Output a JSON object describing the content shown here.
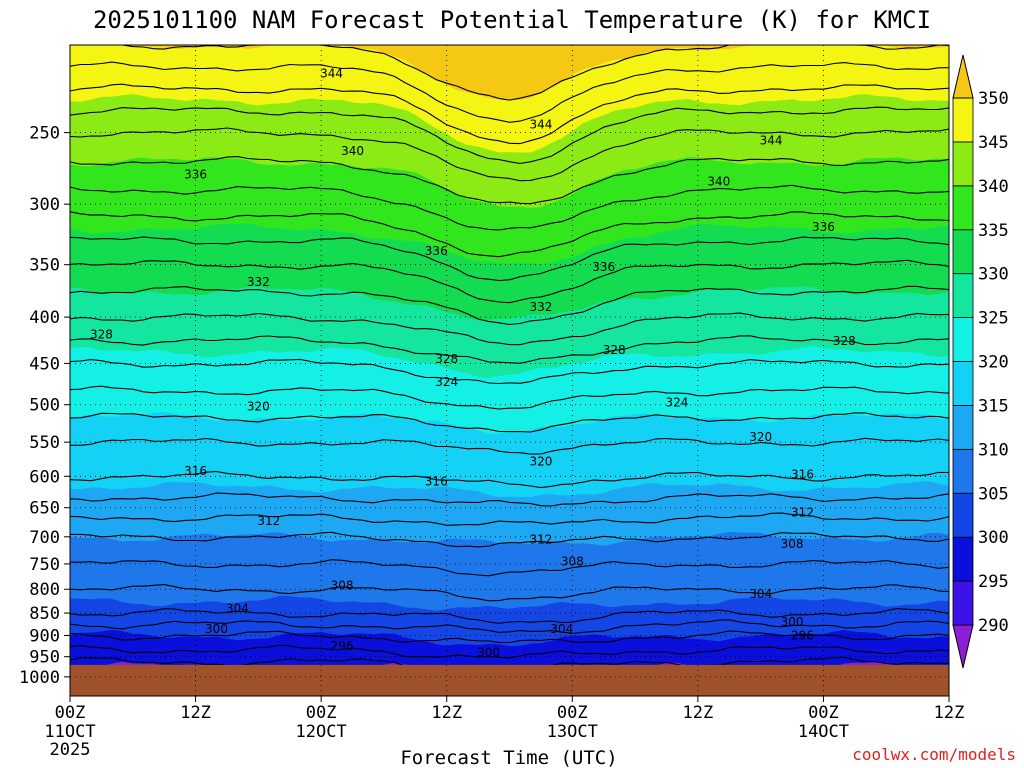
{
  "chart_data": {
    "type": "heatmap",
    "title": "2025101100 NAM Forecast Potential Temperature (K) for KMCI",
    "xlabel": "Forecast Time (UTC)",
    "ylabel": "",
    "x_range_hours": [
      0,
      84
    ],
    "x_ticks": [
      {
        "hour": 0,
        "l1": "00Z",
        "l2": "11OCT",
        "l3": "2025"
      },
      {
        "hour": 12,
        "l1": "12Z",
        "l2": "",
        "l3": ""
      },
      {
        "hour": 24,
        "l1": "00Z",
        "l2": "12OCT",
        "l3": ""
      },
      {
        "hour": 36,
        "l1": "12Z",
        "l2": "",
        "l3": ""
      },
      {
        "hour": 48,
        "l1": "00Z",
        "l2": "13OCT",
        "l3": ""
      },
      {
        "hour": 60,
        "l1": "12Z",
        "l2": "",
        "l3": ""
      },
      {
        "hour": 72,
        "l1": "00Z",
        "l2": "14OCT",
        "l3": ""
      },
      {
        "hour": 84,
        "l1": "12Z",
        "l2": "",
        "l3": ""
      }
    ],
    "y_axis": {
      "scale": "log-pressure",
      "range_hpa": [
        1050,
        200
      ],
      "ticks": [
        250,
        300,
        350,
        400,
        450,
        500,
        550,
        600,
        650,
        700,
        750,
        800,
        850,
        900,
        950,
        1000
      ]
    },
    "colorbar": {
      "min": 290,
      "max": 350,
      "step": 5,
      "ticks": [
        290,
        295,
        300,
        305,
        310,
        315,
        320,
        325,
        330,
        335,
        340,
        345,
        350
      ],
      "bands": [
        {
          "lo": 285,
          "hi": 290,
          "color": "#8c1ed6"
        },
        {
          "lo": 290,
          "hi": 295,
          "color": "#3c12e6"
        },
        {
          "lo": 295,
          "hi": 300,
          "color": "#0a0fdc"
        },
        {
          "lo": 300,
          "hi": 305,
          "color": "#1446e6"
        },
        {
          "lo": 305,
          "hi": 310,
          "color": "#1f78eb"
        },
        {
          "lo": 310,
          "hi": 315,
          "color": "#1ea7f2"
        },
        {
          "lo": 315,
          "hi": 320,
          "color": "#14d2f5"
        },
        {
          "lo": 320,
          "hi": 325,
          "color": "#14f0e6"
        },
        {
          "lo": 325,
          "hi": 330,
          "color": "#14e6a0"
        },
        {
          "lo": 330,
          "hi": 335,
          "color": "#14dc50"
        },
        {
          "lo": 335,
          "hi": 340,
          "color": "#32e61e"
        },
        {
          "lo": 340,
          "hi": 345,
          "color": "#8ceb14"
        },
        {
          "lo": 345,
          "hi": 350,
          "color": "#f5f514"
        },
        {
          "lo": 350,
          "hi": 355,
          "color": "#f5c814"
        }
      ]
    },
    "ground": {
      "pressure_hpa": 970,
      "color": "#a0522d"
    },
    "profile": [
      {
        "pressure": 1000,
        "theta": 293
      },
      {
        "pressure": 950,
        "theta": 297
      },
      {
        "pressure": 900,
        "theta": 300
      },
      {
        "pressure": 850,
        "theta": 304
      },
      {
        "pressure": 800,
        "theta": 306
      },
      {
        "pressure": 750,
        "theta": 308
      },
      {
        "pressure": 700,
        "theta": 310
      },
      {
        "pressure": 650,
        "theta": 313
      },
      {
        "pressure": 600,
        "theta": 316
      },
      {
        "pressure": 550,
        "theta": 318
      },
      {
        "pressure": 500,
        "theta": 321
      },
      {
        "pressure": 450,
        "theta": 324
      },
      {
        "pressure": 400,
        "theta": 328
      },
      {
        "pressure": 350,
        "theta": 332
      },
      {
        "pressure": 300,
        "theta": 337
      },
      {
        "pressure": 250,
        "theta": 342
      },
      {
        "pressure": 200,
        "theta": 350
      }
    ],
    "contour_labels": [
      {
        "text": "344",
        "hour": 25,
        "pressure": 215
      },
      {
        "text": "340",
        "hour": 27,
        "pressure": 262
      },
      {
        "text": "336",
        "hour": 12,
        "pressure": 278
      },
      {
        "text": "344",
        "hour": 45,
        "pressure": 245
      },
      {
        "text": "344",
        "hour": 67,
        "pressure": 255
      },
      {
        "text": "340",
        "hour": 62,
        "pressure": 283
      },
      {
        "text": "336",
        "hour": 72,
        "pressure": 318
      },
      {
        "text": "336",
        "hour": 35,
        "pressure": 338
      },
      {
        "text": "336",
        "hour": 51,
        "pressure": 352
      },
      {
        "text": "332",
        "hour": 18,
        "pressure": 366
      },
      {
        "text": "332",
        "hour": 45,
        "pressure": 390
      },
      {
        "text": "328",
        "hour": 3,
        "pressure": 418
      },
      {
        "text": "328",
        "hour": 36,
        "pressure": 445
      },
      {
        "text": "328",
        "hour": 52,
        "pressure": 435
      },
      {
        "text": "328",
        "hour": 74,
        "pressure": 425
      },
      {
        "text": "324",
        "hour": 36,
        "pressure": 472
      },
      {
        "text": "324",
        "hour": 58,
        "pressure": 497
      },
      {
        "text": "320",
        "hour": 18,
        "pressure": 502
      },
      {
        "text": "320",
        "hour": 45,
        "pressure": 578
      },
      {
        "text": "320",
        "hour": 66,
        "pressure": 543
      },
      {
        "text": "316",
        "hour": 12,
        "pressure": 592
      },
      {
        "text": "316",
        "hour": 35,
        "pressure": 608
      },
      {
        "text": "316",
        "hour": 70,
        "pressure": 597
      },
      {
        "text": "312",
        "hour": 19,
        "pressure": 672
      },
      {
        "text": "312",
        "hour": 45,
        "pressure": 705
      },
      {
        "text": "312",
        "hour": 70,
        "pressure": 658
      },
      {
        "text": "308",
        "hour": 48,
        "pressure": 745
      },
      {
        "text": "308",
        "hour": 69,
        "pressure": 713
      },
      {
        "text": "308",
        "hour": 26,
        "pressure": 792
      },
      {
        "text": "304",
        "hour": 16,
        "pressure": 840
      },
      {
        "text": "304",
        "hour": 47,
        "pressure": 885
      },
      {
        "text": "304",
        "hour": 66,
        "pressure": 810
      },
      {
        "text": "300",
        "hour": 14,
        "pressure": 885
      },
      {
        "text": "300",
        "hour": 40,
        "pressure": 940
      },
      {
        "text": "300",
        "hour": 69,
        "pressure": 870
      },
      {
        "text": "296",
        "hour": 26,
        "pressure": 925
      },
      {
        "text": "296",
        "hour": 70,
        "pressure": 900
      }
    ]
  },
  "credit": "coolwx.com/models"
}
